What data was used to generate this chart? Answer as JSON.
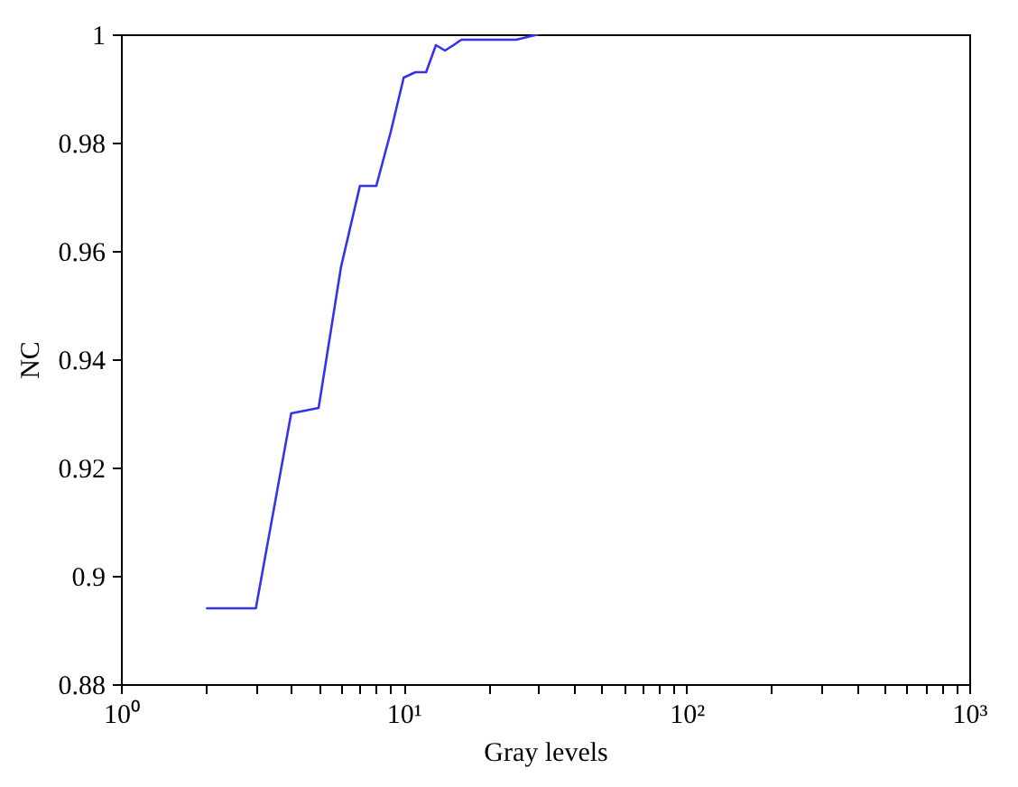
{
  "chart_data": {
    "type": "line",
    "xlabel": "Gray levels",
    "ylabel": "NC",
    "x": [
      2,
      3,
      4,
      5,
      6,
      7,
      8,
      9,
      10,
      11,
      12,
      13,
      14,
      15,
      16,
      25,
      30
    ],
    "series": [
      {
        "color": "#3333ee",
        "values": [
          0.894,
          0.894,
          0.93,
          0.931,
          0.957,
          0.972,
          0.972,
          0.982,
          0.992,
          0.993,
          0.993,
          0.998,
          0.997,
          0.998,
          0.999,
          0.999,
          1.0
        ]
      }
    ],
    "log": "x",
    "xlim": [
      1,
      1000
    ],
    "xticks": [
      {
        "value": 1,
        "label": "10⁰"
      },
      {
        "value": 2,
        "label": null
      },
      {
        "value": 3,
        "label": null
      },
      {
        "value": 4,
        "label": null
      },
      {
        "value": 5,
        "label": null
      },
      {
        "value": 6,
        "label": null
      },
      {
        "value": 7,
        "label": null
      },
      {
        "value": 8,
        "label": null
      },
      {
        "value": 9,
        "label": null
      },
      {
        "value": 10,
        "label": "10¹"
      },
      {
        "value": 20,
        "label": null
      },
      {
        "value": 30,
        "label": null
      },
      {
        "value": 40,
        "label": null
      },
      {
        "value": 50,
        "label": null
      },
      {
        "value": 60,
        "label": null
      },
      {
        "value": 70,
        "label": null
      },
      {
        "value": 80,
        "label": null
      },
      {
        "value": 90,
        "label": null
      },
      {
        "value": 100,
        "label": "10²"
      },
      {
        "value": 200,
        "label": null
      },
      {
        "value": 300,
        "label": null
      },
      {
        "value": 400,
        "label": null
      },
      {
        "value": 500,
        "label": null
      },
      {
        "value": 600,
        "label": null
      },
      {
        "value": 700,
        "label": null
      },
      {
        "value": 800,
        "label": null
      },
      {
        "value": 900,
        "label": null
      },
      {
        "value": 1000,
        "label": "10³"
      }
    ],
    "ylim": [
      0.88,
      1
    ],
    "yticks": [
      0.88,
      0.9,
      0.92,
      0.94,
      0.96,
      0.98,
      1
    ],
    "grid": false,
    "marker": "none",
    "line_style": "solid"
  }
}
